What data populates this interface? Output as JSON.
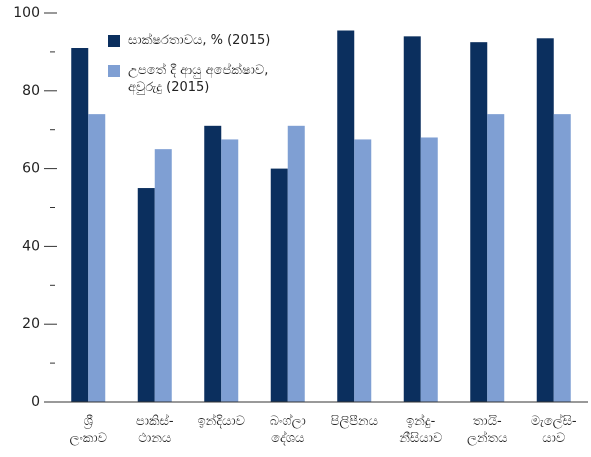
{
  "chart_data": {
    "type": "bar",
    "categories": [
      "ශ්‍රී\nලංකාව",
      "පාකිස්-\nථානය",
      "ඉන්දියාව",
      "බංග්ලා\nදේශය",
      "පිලිපීනය",
      "ඉන්දු-\nනීසියාව",
      "තායි-\nලන්තය",
      "මැලේසි-\nයාව"
    ],
    "series": [
      {
        "name": "සාක්ෂරතාවය, % (2015)",
        "color": "#0b2f5e",
        "values": [
          91,
          55,
          71,
          60,
          95.5,
          94,
          92.5,
          93.5
        ]
      },
      {
        "name": "උපතේ දී ආයු අපේක්ෂාව,\nඅවුරුදු (2015)",
        "color": "#7f9fd3",
        "values": [
          74,
          65,
          67.5,
          71,
          67.5,
          68,
          74,
          74
        ]
      }
    ],
    "ylim": [
      0,
      100
    ],
    "yticks": [
      0,
      20,
      40,
      60,
      80,
      100
    ],
    "yminor_ticks": [
      10,
      30,
      50,
      70,
      90
    ],
    "legend": "top-left"
  }
}
